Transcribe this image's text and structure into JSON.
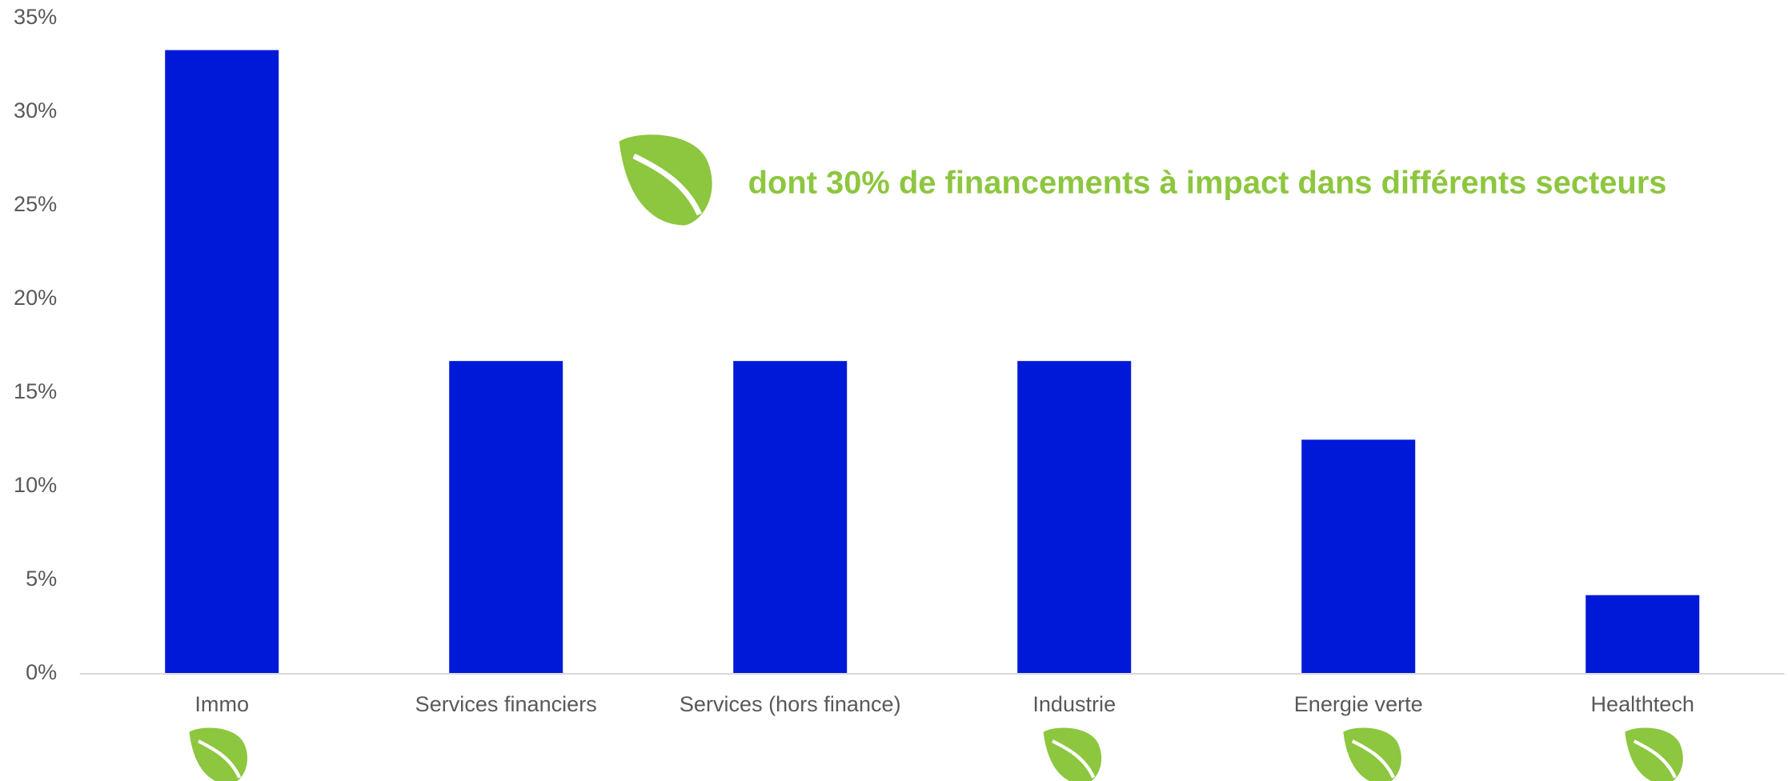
{
  "chart_data": {
    "type": "bar",
    "annotation": "dont 30% de financements à impact dans différents secteurs",
    "categories": [
      "Immo",
      "Services financiers",
      "Services (hors finance)",
      "Industrie",
      "Energie verte",
      "Healthtech"
    ],
    "values": [
      33.3,
      16.7,
      16.7,
      16.7,
      12.5,
      4.2
    ],
    "color": "#0019d8",
    "ylim": [
      0,
      35
    ],
    "yticks": [
      {
        "value": 0,
        "label": "0%"
      },
      {
        "value": 5,
        "label": "5%"
      },
      {
        "value": 10,
        "label": "10%"
      },
      {
        "value": 15,
        "label": "15%"
      },
      {
        "value": 20,
        "label": "20%"
      },
      {
        "value": 25,
        "label": "25%"
      },
      {
        "value": 30,
        "label": "30%"
      },
      {
        "value": 35,
        "label": "35%"
      }
    ],
    "grid": false
  }
}
